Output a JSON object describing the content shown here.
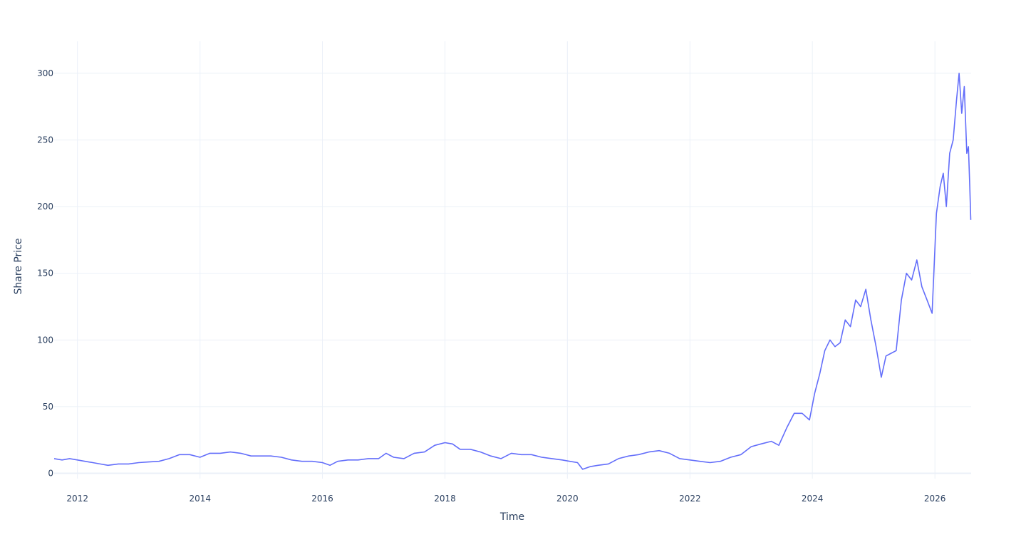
{
  "chart_data": {
    "type": "line",
    "title": "",
    "xlabel": "Time",
    "ylabel": "Share Price",
    "xlim": [
      "2011-08-15",
      "2026-08-05"
    ],
    "ylim": [
      -4,
      324
    ],
    "grid": true,
    "legend": "none",
    "x_ticks": [
      "2012",
      "2014",
      "2016",
      "2018",
      "2020",
      "2022",
      "2024",
      "2026"
    ],
    "y_ticks": [
      0,
      50,
      100,
      150,
      200,
      250,
      300
    ],
    "series": [
      {
        "color": "#636efa",
        "x": [
          "2011-08-15",
          "2011-10-01",
          "2011-11-15",
          "2012-01-01",
          "2012-02-15",
          "2012-04-01",
          "2012-05-15",
          "2012-07-01",
          "2012-09-01",
          "2012-11-01",
          "2013-01-01",
          "2013-03-01",
          "2013-05-01",
          "2013-07-01",
          "2013-09-01",
          "2013-11-01",
          "2014-01-01",
          "2014-03-01",
          "2014-05-01",
          "2014-07-01",
          "2014-09-01",
          "2014-11-01",
          "2015-01-01",
          "2015-03-01",
          "2015-05-01",
          "2015-07-01",
          "2015-09-01",
          "2015-11-01",
          "2016-01-01",
          "2016-02-15",
          "2016-04-01",
          "2016-06-01",
          "2016-08-01",
          "2016-10-01",
          "2016-12-01",
          "2017-01-15",
          "2017-03-01",
          "2017-05-01",
          "2017-07-01",
          "2017-09-01",
          "2017-11-01",
          "2018-01-01",
          "2018-02-15",
          "2018-04-01",
          "2018-06-01",
          "2018-08-01",
          "2018-10-01",
          "2018-12-01",
          "2019-02-01",
          "2019-04-01",
          "2019-06-01",
          "2019-08-01",
          "2019-10-01",
          "2019-12-01",
          "2020-01-15",
          "2020-03-01",
          "2020-04-01",
          "2020-05-15",
          "2020-07-01",
          "2020-09-01",
          "2020-11-01",
          "2021-01-01",
          "2021-03-01",
          "2021-05-01",
          "2021-07-01",
          "2021-09-01",
          "2021-11-01",
          "2022-01-01",
          "2022-03-01",
          "2022-05-01",
          "2022-07-01",
          "2022-09-01",
          "2022-11-01",
          "2023-01-01",
          "2023-03-01",
          "2023-05-01",
          "2023-06-15",
          "2023-08-01",
          "2023-09-15",
          "2023-11-01",
          "2023-12-15",
          "2024-01-15",
          "2024-02-15",
          "2024-03-15",
          "2024-04-15",
          "2024-05-15",
          "2024-06-15",
          "2024-07-15",
          "2024-08-15",
          "2024-09-15",
          "2024-10-15",
          "2024-11-15",
          "2024-12-15",
          "2025-01-15",
          "2025-02-15",
          "2025-03-15",
          "2025-04-15",
          "2025-05-15",
          "2025-06-15",
          "2025-07-15",
          "2025-08-15",
          "2025-09-15",
          "2025-10-15",
          "2025-11-15",
          "2025-12-15",
          "2026-01-10",
          "2026-02-01",
          "2026-02-20",
          "2026-03-10",
          "2026-03-30",
          "2026-04-20",
          "2026-05-10",
          "2026-05-25",
          "2026-06-10",
          "2026-06-25",
          "2026-07-10",
          "2026-07-20",
          "2026-07-28",
          "2026-08-03"
        ],
        "y": [
          11,
          10,
          11,
          10,
          9,
          8,
          7,
          6,
          7,
          7,
          8,
          8.5,
          9,
          11,
          14,
          14,
          12,
          15,
          15,
          16,
          15,
          13,
          13,
          13,
          12,
          10,
          9,
          9,
          8,
          6,
          9,
          10,
          10,
          11,
          11,
          15,
          12,
          11,
          15,
          16,
          21,
          23,
          22,
          18,
          18,
          16,
          13,
          11,
          15,
          14,
          14,
          12,
          11,
          10,
          9,
          8,
          3,
          5,
          6,
          7,
          11,
          13,
          14,
          16,
          17,
          15,
          11,
          10,
          9,
          8,
          9,
          12,
          14,
          20,
          22,
          24,
          21,
          34,
          45,
          45,
          40,
          60,
          75,
          92,
          100,
          95,
          98,
          115,
          110,
          130,
          125,
          138,
          115,
          95,
          72,
          88,
          90,
          92,
          130,
          150,
          145,
          160,
          140,
          130,
          120,
          195,
          215,
          225,
          200,
          240,
          250,
          280,
          300,
          270,
          290,
          240,
          245,
          215,
          190
        ]
      }
    ]
  }
}
